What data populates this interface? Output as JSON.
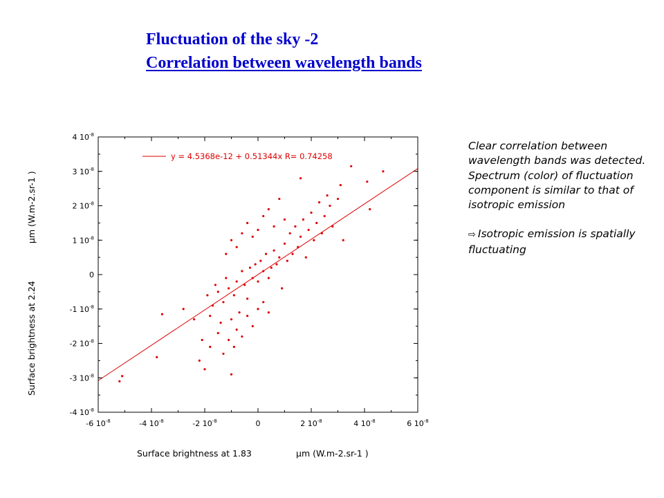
{
  "slide": {
    "title_line1": "Fluctuation of the sky -2",
    "title_line2": "Correlation between wavelength bands",
    "note_lines": [
      "Clear correlation between wavelength bands was detected.",
      "Spectrum (color) of fluctuation component is similar to that of isotropic emission"
    ],
    "conclusion_arrow": "⇨",
    "conclusion": "Isotropic emission is spatially fluctuating"
  },
  "colors": {
    "title": "#0000cc",
    "points": "#dd0000",
    "fit_line": "#dd0000",
    "frame": "#000000"
  },
  "chart_data": {
    "type": "scatter",
    "xlabel": "Surface brightness at 1.83",
    "xlabel_unit": "μm (W.m-2.sr-1 )",
    "ylabel": "Surface brightness at 2.24",
    "ylabel_unit": "μm (W.m-2.sr-1 )",
    "xlim": [
      -6e-08,
      6e-08
    ],
    "ylim": [
      -4e-08,
      4e-08
    ],
    "xticks": [
      {
        "v": -6e-08,
        "m": "-6",
        "e": "10",
        "p": "-8"
      },
      {
        "v": -4e-08,
        "m": "-4",
        "e": "10",
        "p": "-8"
      },
      {
        "v": -2e-08,
        "m": "-2",
        "e": "10",
        "p": "-8"
      },
      {
        "v": 0,
        "m": "0",
        "e": "",
        "p": ""
      },
      {
        "v": 2e-08,
        "m": "2",
        "e": "10",
        "p": "-8"
      },
      {
        "v": 4e-08,
        "m": "4",
        "e": "10",
        "p": "-8"
      },
      {
        "v": 6e-08,
        "m": "6",
        "e": "10",
        "p": "-8"
      }
    ],
    "yticks": [
      {
        "v": 4e-08,
        "m": "4",
        "e": "10",
        "p": "-8"
      },
      {
        "v": 3e-08,
        "m": "3",
        "e": "10",
        "p": "-8"
      },
      {
        "v": 2e-08,
        "m": "2",
        "e": "10",
        "p": "-8"
      },
      {
        "v": 1e-08,
        "m": "1",
        "e": "10",
        "p": "-8"
      },
      {
        "v": 0,
        "m": "0",
        "e": "",
        "p": ""
      },
      {
        "v": -1e-08,
        "m": "-1",
        "e": "10",
        "p": "-8"
      },
      {
        "v": -2e-08,
        "m": "-2",
        "e": "10",
        "p": "-8"
      },
      {
        "v": -3e-08,
        "m": "-3",
        "e": "10",
        "p": "-8"
      },
      {
        "v": -4e-08,
        "m": "-4",
        "e": "10",
        "p": "-8"
      }
    ],
    "fit": {
      "intercept": 4.5368e-12,
      "slope": 0.51344,
      "r": 0.74258,
      "legend": "y = 4.5368e-12 + 0.51344x R= 0.74258"
    },
    "series": [
      {
        "points": [
          [
            -5.2e-08,
            -3.1e-08
          ],
          [
            -5.1e-08,
            -2.95e-08
          ],
          [
            -3.6e-08,
            -1.15e-08
          ],
          [
            -3.8e-08,
            -2.4e-08
          ],
          [
            -2.2e-08,
            -2.5e-08
          ],
          [
            -2e-08,
            -2.75e-08
          ],
          [
            -1e-08,
            -2.9e-08
          ],
          [
            -2.8e-08,
            -1e-08
          ],
          [
            4.7e-08,
            3e-08
          ],
          [
            4.2e-08,
            1.9e-08
          ],
          [
            3.5e-08,
            3.15e-08
          ],
          [
            3.1e-08,
            2.6e-08
          ],
          [
            1.6e-08,
            2.8e-08
          ],
          [
            3.2e-08,
            1e-08
          ],
          [
            4.1e-08,
            2.7e-08
          ],
          [
            2.7e-08,
            2e-08
          ],
          [
            3e-08,
            2.2e-08
          ],
          [
            -2.4e-08,
            -1.3e-08
          ],
          [
            -1.8e-08,
            -1.2e-08
          ],
          [
            -1.5e-08,
            -5e-09
          ],
          [
            -1.3e-08,
            -8e-09
          ],
          [
            -1.2e-08,
            -1e-09
          ],
          [
            -1.1e-08,
            -4e-09
          ],
          [
            -9e-09,
            -6e-09
          ],
          [
            -8e-09,
            -2e-09
          ],
          [
            -7e-09,
            -1.1e-08
          ],
          [
            -6e-09,
            1e-09
          ],
          [
            -5e-09,
            -3e-09
          ],
          [
            -4e-09,
            -7e-09
          ],
          [
            -3e-09,
            2e-09
          ],
          [
            -2e-09,
            -1e-09
          ],
          [
            -1e-09,
            3e-09
          ],
          [
            0,
            -2e-09
          ],
          [
            1e-09,
            4e-09
          ],
          [
            2e-09,
            1e-09
          ],
          [
            3e-09,
            6e-09
          ],
          [
            4e-09,
            -1e-09
          ],
          [
            5e-09,
            2e-09
          ],
          [
            6e-09,
            7e-09
          ],
          [
            7e-09,
            3e-09
          ],
          [
            8e-09,
            5e-09
          ],
          [
            9e-09,
            -4e-09
          ],
          [
            1e-08,
            9e-09
          ],
          [
            1.1e-08,
            4e-09
          ],
          [
            1.2e-08,
            1.2e-08
          ],
          [
            1.3e-08,
            6e-09
          ],
          [
            1.4e-08,
            1.4e-08
          ],
          [
            1.5e-08,
            8e-09
          ],
          [
            1.6e-08,
            1.1e-08
          ],
          [
            1.7e-08,
            1.6e-08
          ],
          [
            1.8e-08,
            5e-09
          ],
          [
            1.9e-08,
            1.3e-08
          ],
          [
            2e-08,
            1.8e-08
          ],
          [
            2.1e-08,
            1e-08
          ],
          [
            2.2e-08,
            1.5e-08
          ],
          [
            2.3e-08,
            2.1e-08
          ],
          [
            2.4e-08,
            1.2e-08
          ],
          [
            2.5e-08,
            1.7e-08
          ],
          [
            2.6e-08,
            2.3e-08
          ],
          [
            2.8e-08,
            1.4e-08
          ],
          [
            -1.9e-08,
            -6e-09
          ],
          [
            -1.7e-08,
            -9e-09
          ],
          [
            -1.6e-08,
            -3e-09
          ],
          [
            -1.4e-08,
            -1.4e-08
          ],
          [
            -1e-08,
            -1.3e-08
          ],
          [
            -8e-09,
            -1.6e-08
          ],
          [
            -6e-09,
            -1.8e-08
          ],
          [
            -4e-09,
            -1.2e-08
          ],
          [
            -2e-09,
            -1.5e-08
          ],
          [
            0,
            -1e-08
          ],
          [
            2e-09,
            -8e-09
          ],
          [
            4e-09,
            -1.1e-08
          ],
          [
            -1.2e-08,
            6e-09
          ],
          [
            -1e-08,
            1e-08
          ],
          [
            -8e-09,
            8e-09
          ],
          [
            -6e-09,
            1.2e-08
          ],
          [
            -4e-09,
            1.5e-08
          ],
          [
            -2e-09,
            1.1e-08
          ],
          [
            0,
            1.3e-08
          ],
          [
            2e-09,
            1.7e-08
          ],
          [
            4e-09,
            1.9e-08
          ],
          [
            6e-09,
            1.4e-08
          ],
          [
            8e-09,
            2.2e-08
          ],
          [
            1e-08,
            1.6e-08
          ],
          [
            -2.1e-08,
            -1.9e-08
          ],
          [
            -1.8e-08,
            -2.1e-08
          ],
          [
            -1.5e-08,
            -1.7e-08
          ],
          [
            -1.3e-08,
            -2.3e-08
          ],
          [
            -1.1e-08,
            -1.9e-08
          ],
          [
            -9e-09,
            -2.1e-08
          ]
        ]
      }
    ]
  }
}
